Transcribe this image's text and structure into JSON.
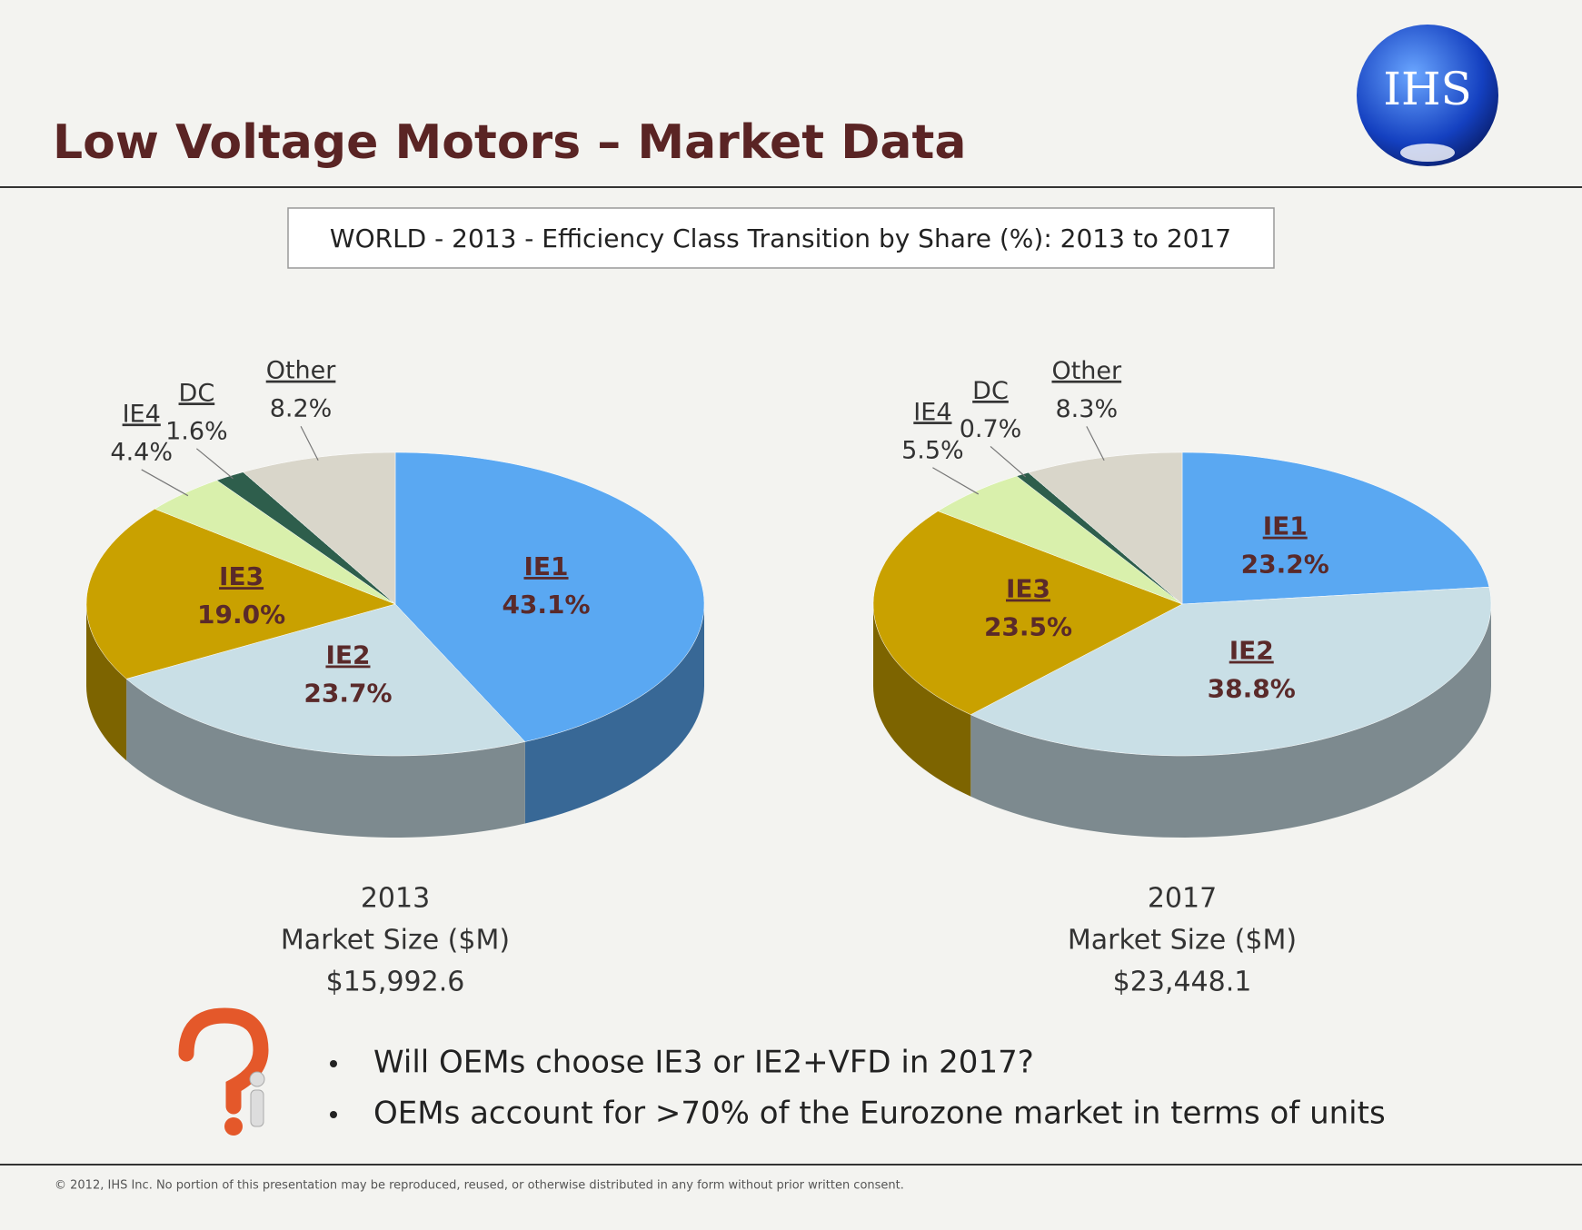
{
  "slide": {
    "title": "Low Voltage Motors – Market Data",
    "subtitle": "WORLD - 2013 - Efficiency Class Transition by Share (%): 2013 to 2017",
    "logo": "IHS",
    "bullets": [
      "Will OEMs choose IE3 or IE2+VFD in 2017?",
      "OEMs account for >70% of the Eurozone market in terms of units"
    ],
    "footer": "© 2012, IHS Inc. No portion of this presentation may be reproduced, reused, or otherwise distributed in any form without prior written consent."
  },
  "chart_data": [
    {
      "type": "pie",
      "title": "2013",
      "subtitle": "Market Size ($M)",
      "annotation": "$15,992.6",
      "categories": [
        "IE1",
        "IE2",
        "IE3",
        "IE4",
        "DC",
        "Other"
      ],
      "values": [
        43.1,
        23.7,
        19.0,
        4.4,
        1.6,
        8.2
      ],
      "value_labels": [
        "43.1%",
        "23.7%",
        "19.0%",
        "4.4%",
        "1.6%",
        "8.2%"
      ],
      "colors": [
        "#5aa8f2",
        "#c9dfe6",
        "#c9a100",
        "#d9f0ac",
        "#2e5e4c",
        "#d9d6ca"
      ]
    },
    {
      "type": "pie",
      "title": "2017",
      "subtitle": "Market Size ($M)",
      "annotation": "$23,448.1",
      "categories": [
        "IE1",
        "IE2",
        "IE3",
        "IE4",
        "DC",
        "Other"
      ],
      "values": [
        23.2,
        38.8,
        23.5,
        5.5,
        0.7,
        8.3
      ],
      "value_labels": [
        "23.2%",
        "38.8%",
        "23.5%",
        "5.5%",
        "0.7%",
        "8.3%"
      ],
      "colors": [
        "#5aa8f2",
        "#c9dfe6",
        "#c9a100",
        "#d9f0ac",
        "#2e5e4c",
        "#d9d6ca"
      ]
    }
  ]
}
